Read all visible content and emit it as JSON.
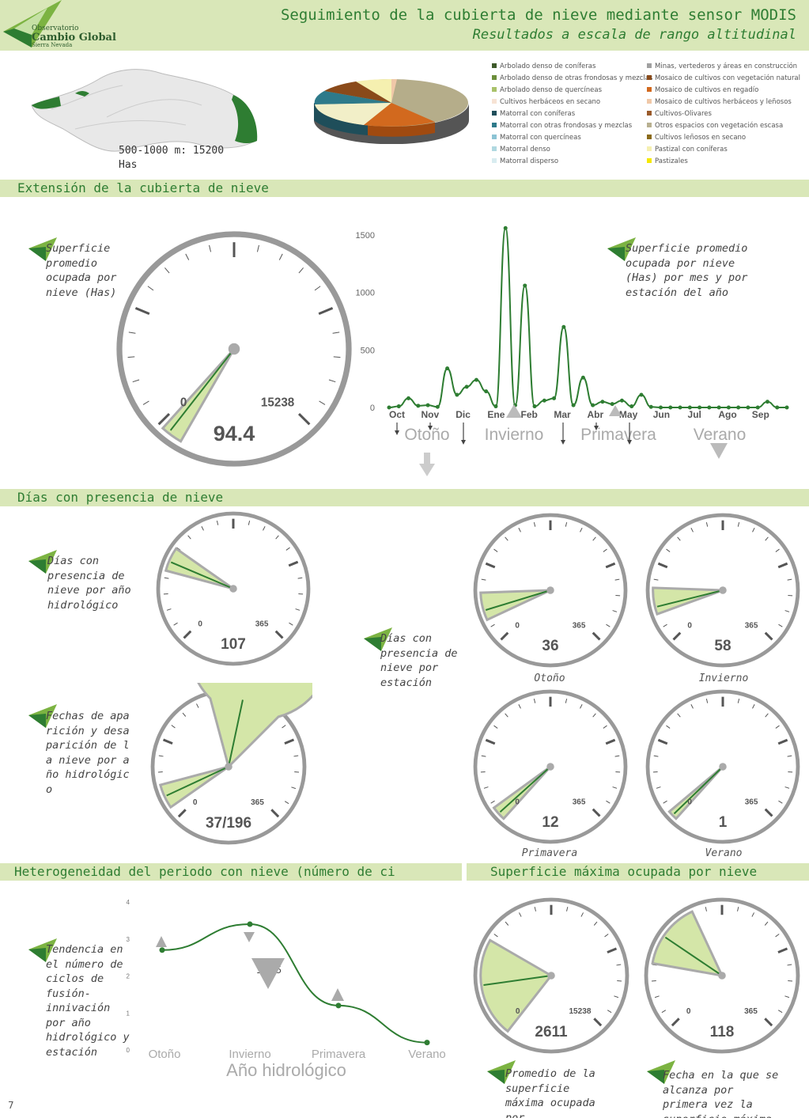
{
  "header": {
    "title": "Seguimiento de la cubierta de nieve mediante sensor MODIS",
    "subtitle": "Resultados a escala de rango altitudinal",
    "logo": {
      "line1": "Observatorio",
      "line2": "Cambio Global",
      "line3": "Sierra Nevada"
    }
  },
  "area": {
    "range_label": "500-1000 m: 15200",
    "unit": "Has"
  },
  "legend": {
    "left": [
      {
        "label": "Arbolado denso de coníferas",
        "color": "#3e5a2a"
      },
      {
        "label": "Arbolado denso de otras frondosas y mezclas",
        "color": "#6b8e3a"
      },
      {
        "label": "Arbolado denso de quercíneas",
        "color": "#a9c26a"
      },
      {
        "label": "Cultivos herbáceos en secano",
        "color": "#f7e3d4"
      },
      {
        "label": "Matorral con coníferas",
        "color": "#1f4e5a"
      },
      {
        "label": "Matorral con otras frondosas y mezclas",
        "color": "#2e7a8a"
      },
      {
        "label": "Matorral con quercíneas",
        "color": "#8cc4d4"
      },
      {
        "label": "Matorral denso",
        "color": "#b0d8e0"
      },
      {
        "label": "Matorral disperso",
        "color": "#d8ecf0"
      }
    ],
    "right": [
      {
        "label": "Minas, vertederos y áreas en construcción",
        "color": "#a0a0a0"
      },
      {
        "label": "Mosaico de cultivos con vegetación natural",
        "color": "#8a4a1a"
      },
      {
        "label": "Mosaico de cultivos en regadío",
        "color": "#d2691e"
      },
      {
        "label": "Mosaico de cultivos herbáceos y leñosos",
        "color": "#f0c8a8"
      },
      {
        "label": "Cultivos-Olivares",
        "color": "#9a5a2a"
      },
      {
        "label": "Otros espacios con vegetación escasa",
        "color": "#b8b090"
      },
      {
        "label": "Cultivos leñosos en secano",
        "color": "#8a6a1a"
      },
      {
        "label": "Pastizal con coníferas",
        "color": "#f5f0b0"
      },
      {
        "label": "Pastizales",
        "color": "#f5e800"
      }
    ]
  },
  "sections": {
    "extension": "Extensión de la cubierta de nieve",
    "days": "Días con presencia de nieve",
    "heterogeneity": "Heterogeneidad del periodo con nieve (número de ci",
    "max_surface": "Superficie máxima ocupada por nieve"
  },
  "descriptions": {
    "avg_surface": "Superficie promedio ocupada por nieve (Has)",
    "monthly_surface": "Superficie promedio ocupada por nieve (Has) por mes y por estación del año",
    "days_year": "Días con presencia de nieve por año hidrológico",
    "days_season": "Días con presencia de nieve por estación",
    "dates": "Fechas de aparición y desaparición de la nieve por año hidrológico",
    "cycles": "Tendencia en el número de ciclos de fusión-innivación por año hidrológico y estación",
    "max_avg": "Promedio de la superficie máxima ocupada por",
    "max_date": "Fecha en la que se alcanza por primera vez la superficie máxima"
  },
  "gauges": {
    "avg_surface": {
      "value": 94.4,
      "display": "94.4",
      "min": "0",
      "max": "15238"
    },
    "days_year": {
      "value": 107,
      "display": "107",
      "min": "0",
      "max": "365"
    },
    "dates": {
      "display": "37/196",
      "start": 37,
      "end": 196,
      "min": "0",
      "max": "365"
    },
    "autumn": {
      "value": 36,
      "display": "36",
      "min": "0",
      "max": "365",
      "caption": "Otoño"
    },
    "winter": {
      "value": 58,
      "display": "58",
      "min": "0",
      "max": "365",
      "caption": "Invierno"
    },
    "spring": {
      "value": 12,
      "display": "12",
      "min": "0",
      "max": "365",
      "caption": "Primavera"
    },
    "summer": {
      "value": 1,
      "display": "1",
      "min": "0",
      "max": "365",
      "caption": "Verano"
    },
    "max_surface": {
      "value": 2611,
      "display": "2611",
      "min": "0",
      "max": "15238"
    },
    "max_date": {
      "value": 118,
      "display": "118",
      "min": "0",
      "max": "365"
    }
  },
  "chart_data": [
    {
      "type": "line",
      "ylim": [
        0,
        1500
      ],
      "y_ticks": [
        "0",
        "500",
        "1000",
        "1500"
      ],
      "months": [
        "Oct",
        "Nov",
        "Dic",
        "Ene",
        "Feb",
        "Mar",
        "Abr",
        "May",
        "Jun",
        "Jul",
        "Ago",
        "Sep"
      ],
      "seasons": [
        "Otoño",
        "Invierno",
        "Primavera",
        "Verano"
      ],
      "values": [
        0,
        10,
        80,
        15,
        20,
        5,
        340,
        110,
        180,
        240,
        140,
        10,
        1560,
        20,
        1060,
        10,
        60,
        80,
        700,
        20,
        260,
        20,
        50,
        30,
        60,
        10,
        110,
        5,
        0,
        0,
        0,
        0,
        0,
        0,
        0,
        0,
        0,
        0,
        0,
        50,
        0,
        0
      ]
    },
    {
      "type": "line",
      "ylim": [
        0,
        4
      ],
      "y_ticks": [
        "0",
        "1",
        "2",
        "3",
        "4"
      ],
      "categories": [
        "Otoño",
        "Invierno",
        "Primavera",
        "Verano"
      ],
      "values": [
        2.7,
        3.4,
        1.2,
        0.2
      ],
      "annotation": "11.25",
      "xlabel": "Año hidrológico"
    }
  ],
  "page_number": "7"
}
